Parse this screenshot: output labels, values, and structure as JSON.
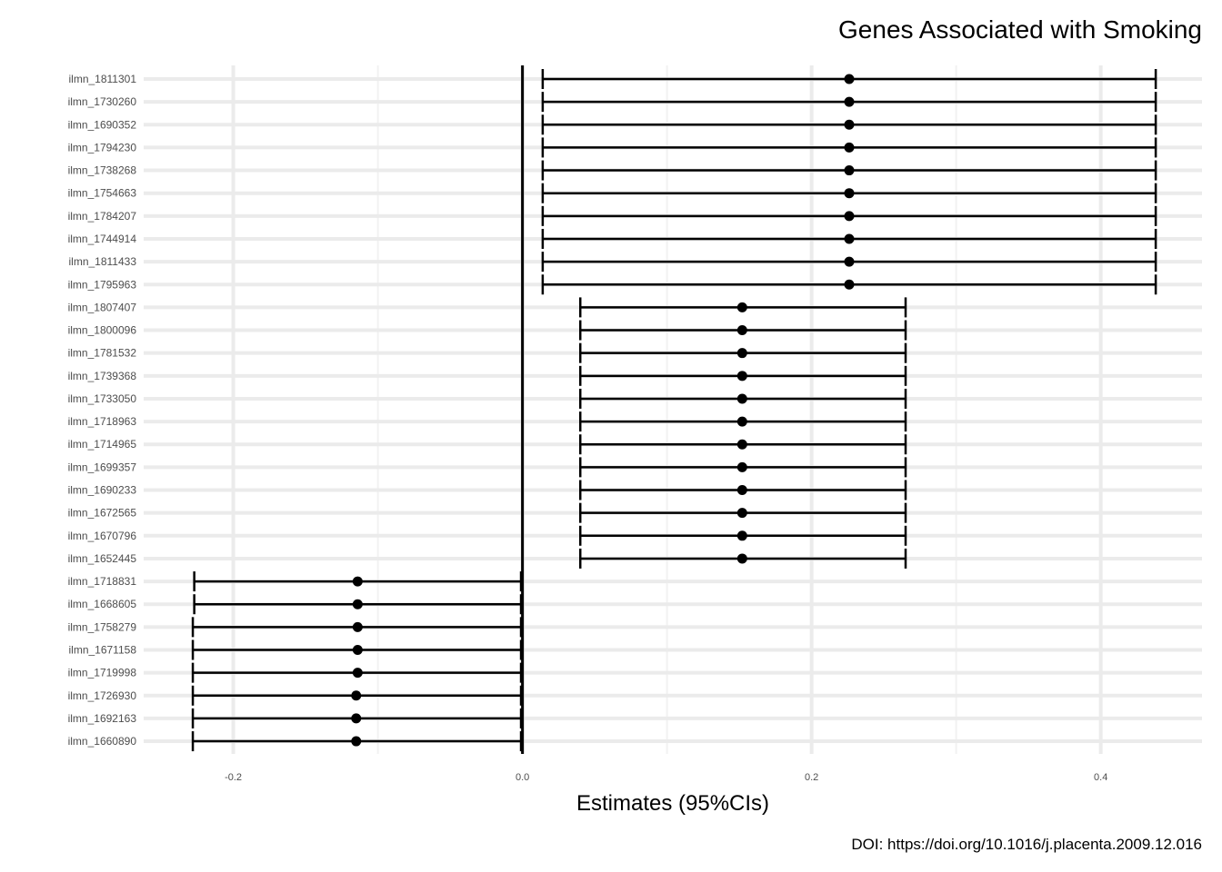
{
  "chart_data": {
    "type": "forest",
    "title": "Genes Associated with Smoking",
    "xlabel": "Estimates (95%CIs)",
    "ylabel": "",
    "caption": "DOI: https://doi.org/10.1016/j.placenta.2009.12.016",
    "xlim": [
      -0.262,
      0.47
    ],
    "x_ticks": [
      -0.2,
      0.0,
      0.2,
      0.4
    ],
    "x_tick_labels": [
      "-0.2",
      "0.0",
      "0.2",
      "0.4"
    ],
    "reference_line": 0,
    "grid": true,
    "rows": [
      {
        "label": "ilmn_1811301",
        "estimate": 0.226,
        "lower": 0.014,
        "upper": 0.438
      },
      {
        "label": "ilmn_1730260",
        "estimate": 0.226,
        "lower": 0.014,
        "upper": 0.438
      },
      {
        "label": "ilmn_1690352",
        "estimate": 0.226,
        "lower": 0.014,
        "upper": 0.438
      },
      {
        "label": "ilmn_1794230",
        "estimate": 0.226,
        "lower": 0.014,
        "upper": 0.438
      },
      {
        "label": "ilmn_1738268",
        "estimate": 0.226,
        "lower": 0.014,
        "upper": 0.438
      },
      {
        "label": "ilmn_1754663",
        "estimate": 0.226,
        "lower": 0.014,
        "upper": 0.438
      },
      {
        "label": "ilmn_1784207",
        "estimate": 0.226,
        "lower": 0.014,
        "upper": 0.438
      },
      {
        "label": "ilmn_1744914",
        "estimate": 0.226,
        "lower": 0.014,
        "upper": 0.438
      },
      {
        "label": "ilmn_1811433",
        "estimate": 0.226,
        "lower": 0.014,
        "upper": 0.438
      },
      {
        "label": "ilmn_1795963",
        "estimate": 0.226,
        "lower": 0.014,
        "upper": 0.438
      },
      {
        "label": "ilmn_1807407",
        "estimate": 0.152,
        "lower": 0.04,
        "upper": 0.265
      },
      {
        "label": "ilmn_1800096",
        "estimate": 0.152,
        "lower": 0.04,
        "upper": 0.265
      },
      {
        "label": "ilmn_1781532",
        "estimate": 0.152,
        "lower": 0.04,
        "upper": 0.265
      },
      {
        "label": "ilmn_1739368",
        "estimate": 0.152,
        "lower": 0.04,
        "upper": 0.265
      },
      {
        "label": "ilmn_1733050",
        "estimate": 0.152,
        "lower": 0.04,
        "upper": 0.265
      },
      {
        "label": "ilmn_1718963",
        "estimate": 0.152,
        "lower": 0.04,
        "upper": 0.265
      },
      {
        "label": "ilmn_1714965",
        "estimate": 0.152,
        "lower": 0.04,
        "upper": 0.265
      },
      {
        "label": "ilmn_1699357",
        "estimate": 0.152,
        "lower": 0.04,
        "upper": 0.265
      },
      {
        "label": "ilmn_1690233",
        "estimate": 0.152,
        "lower": 0.04,
        "upper": 0.265
      },
      {
        "label": "ilmn_1672565",
        "estimate": 0.152,
        "lower": 0.04,
        "upper": 0.265
      },
      {
        "label": "ilmn_1670796",
        "estimate": 0.152,
        "lower": 0.04,
        "upper": 0.265
      },
      {
        "label": "ilmn_1652445",
        "estimate": 0.152,
        "lower": 0.04,
        "upper": 0.265
      },
      {
        "label": "ilmn_1718831",
        "estimate": -0.114,
        "lower": -0.227,
        "upper": -0.001
      },
      {
        "label": "ilmn_1668605",
        "estimate": -0.114,
        "lower": -0.227,
        "upper": -0.001
      },
      {
        "label": "ilmn_1758279",
        "estimate": -0.114,
        "lower": -0.228,
        "upper": -0.001
      },
      {
        "label": "ilmn_1671158",
        "estimate": -0.114,
        "lower": -0.228,
        "upper": -0.001
      },
      {
        "label": "ilmn_1719998",
        "estimate": -0.114,
        "lower": -0.228,
        "upper": -0.001
      },
      {
        "label": "ilmn_1726930",
        "estimate": -0.115,
        "lower": -0.228,
        "upper": -0.001
      },
      {
        "label": "ilmn_1692163",
        "estimate": -0.115,
        "lower": -0.228,
        "upper": -0.001
      },
      {
        "label": "ilmn_1660890",
        "estimate": -0.115,
        "lower": -0.228,
        "upper": -0.001
      }
    ],
    "colors": {
      "points": "#000000",
      "grid": "#ebebeb",
      "background": "#ffffff"
    }
  }
}
